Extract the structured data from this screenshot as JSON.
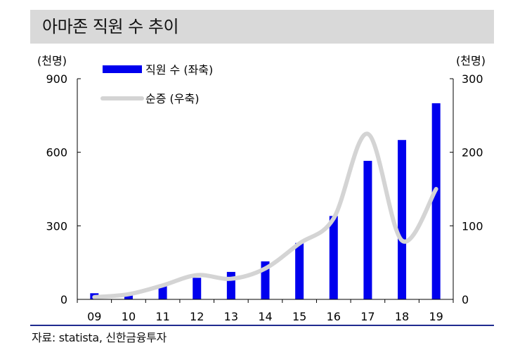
{
  "title": "아마존 직원 수 추이",
  "source": "자료: statista, 신한금융투자",
  "colors": {
    "bar": "#0000ee",
    "line": "#d4d4d4",
    "title_bg": "#d9d9d9",
    "rule": "#1f2b8f"
  },
  "chart_data": {
    "type": "bar",
    "categories": [
      "09",
      "10",
      "11",
      "12",
      "13",
      "14",
      "15",
      "16",
      "17",
      "18",
      "19"
    ],
    "series": [
      {
        "name": "직원 수 (좌축)",
        "type": "bar",
        "axis": "left",
        "values": [
          25,
          24,
          55,
          88,
          112,
          155,
          230,
          340,
          565,
          650,
          800
        ]
      },
      {
        "name": "순증 (우축)",
        "type": "line",
        "axis": "right",
        "values": [
          3,
          7,
          19,
          33,
          28,
          42,
          76,
          110,
          225,
          80,
          150
        ]
      }
    ],
    "y_left": {
      "unit": "(천명)",
      "lim": [
        0,
        900
      ],
      "ticks": [
        0,
        300,
        600,
        900
      ]
    },
    "y_right": {
      "unit": "(천명)",
      "lim": [
        0,
        300
      ],
      "ticks": [
        0,
        100,
        200,
        300
      ]
    },
    "legend": "top-left",
    "grid": false
  }
}
